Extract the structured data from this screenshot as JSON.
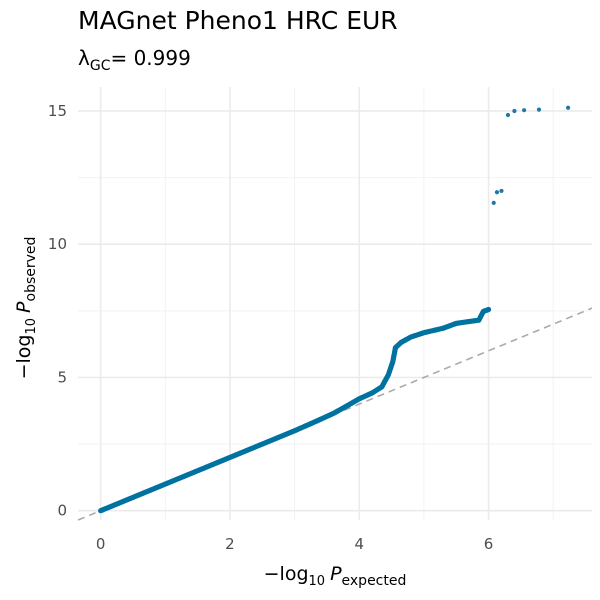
{
  "chart_data": {
    "type": "scatter",
    "title": "MAGnet Pheno1 HRC EUR",
    "subtitle": {
      "lambda_symbol": "λ",
      "lambda_subscript": "GC",
      "lambda_value": "= 0.999"
    },
    "xlabel": {
      "prefix": "−log",
      "base": "10",
      "var": "P",
      "sub": "expected"
    },
    "ylabel": {
      "prefix": "−log",
      "base": "10",
      "var": "P",
      "sub": "observed"
    },
    "xlim": [
      -0.35,
      7.6
    ],
    "ylim": [
      -0.35,
      15.9
    ],
    "x_ticks": [
      0,
      2,
      4,
      6
    ],
    "x_tick_labels": [
      "0",
      "2",
      "4",
      "6"
    ],
    "y_ticks": [
      0,
      5,
      10,
      15
    ],
    "y_tick_labels": [
      "0",
      "5",
      "10",
      "15"
    ],
    "grid": true,
    "point_color": "#0072A0",
    "outlier_color": "#1F78A8",
    "reference_line_color": "#AAAAAA",
    "reference_line": "y = x",
    "series": [
      {
        "curve": [
          [
            0.0,
            0.0
          ],
          [
            0.5,
            0.5
          ],
          [
            1.0,
            1.0
          ],
          [
            1.5,
            1.5
          ],
          [
            2.0,
            2.0
          ],
          [
            2.5,
            2.5
          ],
          [
            3.0,
            3.0
          ],
          [
            3.3,
            3.32
          ],
          [
            3.6,
            3.65
          ],
          [
            3.8,
            3.92
          ],
          [
            4.0,
            4.2
          ],
          [
            4.2,
            4.42
          ],
          [
            4.35,
            4.65
          ],
          [
            4.45,
            5.1
          ],
          [
            4.52,
            5.6
          ],
          [
            4.56,
            6.12
          ],
          [
            4.65,
            6.32
          ],
          [
            4.8,
            6.52
          ],
          [
            5.0,
            6.68
          ],
          [
            5.3,
            6.85
          ],
          [
            5.5,
            7.03
          ],
          [
            5.7,
            7.1
          ],
          [
            5.85,
            7.15
          ],
          [
            5.92,
            7.48
          ],
          [
            6.0,
            7.55
          ]
        ],
        "outliers": [
          [
            6.08,
            11.55
          ],
          [
            6.13,
            11.95
          ],
          [
            6.2,
            12.0
          ],
          [
            6.3,
            14.85
          ],
          [
            6.4,
            15.0
          ],
          [
            6.55,
            15.03
          ],
          [
            6.78,
            15.05
          ],
          [
            7.23,
            15.12
          ]
        ]
      }
    ]
  }
}
